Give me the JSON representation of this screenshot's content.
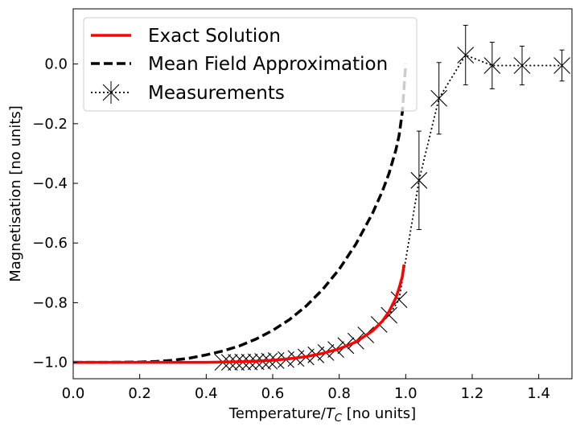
{
  "chart_data": {
    "type": "line",
    "xlabel_main": "Temperature/",
    "xlabel_math_T": "T",
    "xlabel_math_sub": "C",
    "xlabel_tail": " [no units]",
    "ylabel": "Magnetisation [no units]",
    "xlim": [
      0.0,
      1.5
    ],
    "ylim": [
      -1.055,
      0.185
    ],
    "grid": false,
    "legend_placement": "top-left",
    "xticks": [
      {
        "value": 0.0,
        "label": "0.0"
      },
      {
        "value": 0.2,
        "label": "0.2"
      },
      {
        "value": 0.4,
        "label": "0.4"
      },
      {
        "value": 0.6,
        "label": "0.6"
      },
      {
        "value": 0.8,
        "label": "0.8"
      },
      {
        "value": 1.0,
        "label": "1.0"
      },
      {
        "value": 1.2,
        "label": "1.2"
      },
      {
        "value": 1.4,
        "label": "1.4"
      }
    ],
    "yticks": [
      {
        "value": 0.0,
        "label": "0.0"
      },
      {
        "value": -0.2,
        "label": "−0.2"
      },
      {
        "value": -0.4,
        "label": "−0.4"
      },
      {
        "value": -0.6,
        "label": "−0.6"
      },
      {
        "value": -0.8,
        "label": "−0.8"
      },
      {
        "value": -1.0,
        "label": "−1.0"
      }
    ],
    "series": [
      {
        "name": "Exact Solution",
        "style": "solid",
        "color": "#ff0000",
        "x": [
          0.0,
          0.1,
          0.2,
          0.3,
          0.4,
          0.45,
          0.5,
          0.55,
          0.6,
          0.65,
          0.7,
          0.75,
          0.8,
          0.85,
          0.9,
          0.93,
          0.95,
          0.97,
          0.98,
          0.99,
          0.995
        ],
        "y": [
          -1.0,
          -1.0,
          -1.0,
          -1.0,
          -1.0,
          -0.999,
          -0.998,
          -0.996,
          -0.993,
          -0.988,
          -0.981,
          -0.97,
          -0.955,
          -0.932,
          -0.895,
          -0.862,
          -0.83,
          -0.785,
          -0.752,
          -0.712,
          -0.672
        ]
      },
      {
        "name": "Mean Field Approximation",
        "style": "dashed",
        "color": "#000000",
        "x": [
          0.0,
          0.1,
          0.2,
          0.25,
          0.3,
          0.35,
          0.4,
          0.45,
          0.5,
          0.55,
          0.6,
          0.65,
          0.7,
          0.75,
          0.8,
          0.85,
          0.9,
          0.93,
          0.95,
          0.97,
          0.98,
          0.99,
          1.0
        ],
        "y": [
          -1.0,
          -1.0,
          -0.999,
          -0.997,
          -0.993,
          -0.986,
          -0.975,
          -0.962,
          -0.945,
          -0.922,
          -0.893,
          -0.857,
          -0.812,
          -0.756,
          -0.688,
          -0.604,
          -0.501,
          -0.426,
          -0.366,
          -0.29,
          -0.24,
          -0.16,
          0.0
        ]
      },
      {
        "name": "Measurements",
        "style": "dotted",
        "marker": "x",
        "color": "#000000",
        "x": [
          0.45,
          0.47,
          0.49,
          0.51,
          0.53,
          0.55,
          0.57,
          0.59,
          0.61,
          0.64,
          0.67,
          0.7,
          0.73,
          0.76,
          0.79,
          0.82,
          0.85,
          0.88,
          0.92,
          0.95,
          0.98,
          1.04,
          1.1,
          1.18,
          1.26,
          1.35,
          1.47
        ],
        "y": [
          -1.0,
          -1.0,
          -1.0,
          -0.999,
          -0.999,
          -0.998,
          -0.997,
          -0.996,
          -0.994,
          -0.991,
          -0.987,
          -0.982,
          -0.975,
          -0.967,
          -0.957,
          -0.944,
          -0.929,
          -0.908,
          -0.873,
          -0.842,
          -0.79,
          -0.39,
          -0.115,
          0.03,
          -0.005,
          -0.005,
          -0.005
        ],
        "err": [
          0.0,
          0.0,
          0.0,
          0.0,
          0.0,
          0.0,
          0.0,
          0.0,
          0.0,
          0.0,
          0.0,
          0.0,
          0.0,
          0.0,
          0.0,
          0.0,
          0.0,
          0.0,
          0.0,
          0.0,
          0.0,
          0.165,
          0.12,
          0.1,
          0.078,
          0.065,
          0.052
        ]
      }
    ]
  }
}
